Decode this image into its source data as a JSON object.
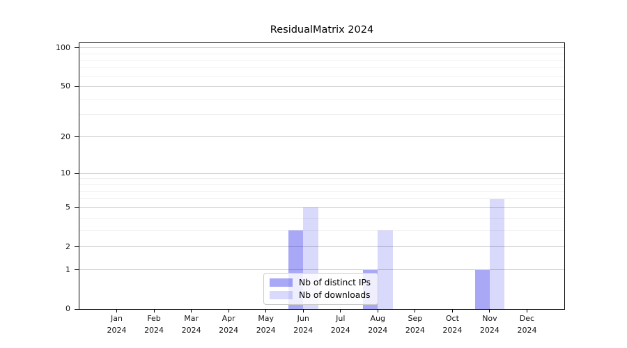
{
  "chart_data": {
    "type": "bar",
    "title": "ResidualMatrix 2024",
    "categories": [
      "Jan 2024",
      "Feb 2024",
      "Mar 2024",
      "Apr 2024",
      "May 2024",
      "Jun 2024",
      "Jul 2024",
      "Aug 2024",
      "Sep 2024",
      "Oct 2024",
      "Nov 2024",
      "Dec 2024"
    ],
    "series": [
      {
        "name": "Nb of distinct IPs",
        "color": "rgba(0,0,228,0.34)",
        "values": [
          0,
          0,
          0,
          0,
          0,
          3,
          0,
          1,
          0,
          0,
          1,
          0
        ]
      },
      {
        "name": "Nb of downloads",
        "color": "rgba(0,0,228,0.15)",
        "values": [
          0,
          0,
          0,
          0,
          0,
          5,
          0,
          3,
          0,
          0,
          6,
          0
        ]
      }
    ],
    "scale": "log1p",
    "ylim": [
      0,
      109
    ],
    "yticks_major": [
      0,
      1,
      2,
      5,
      10,
      20,
      50,
      100
    ],
    "yticks_minor": [
      3,
      4,
      6,
      7,
      8,
      9,
      30,
      40,
      60,
      70,
      80,
      90
    ],
    "grid": {
      "major_color": "#cccccc",
      "minor_color": "#efefef",
      "on": true
    },
    "legend": {
      "position": "lower center inside axes",
      "frame": true
    },
    "xlabel": "",
    "ylabel": "",
    "axis_color": "#000000"
  }
}
